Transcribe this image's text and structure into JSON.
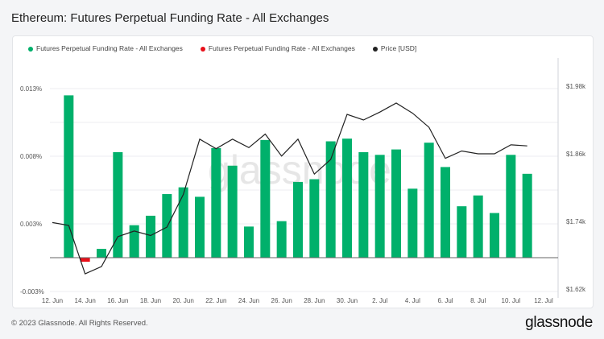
{
  "title": "Ethereum: Futures Perpetual Funding Rate - All Exchanges",
  "footer": "© 2023 Glassnode. All Rights Reserved.",
  "logo": "glassnode",
  "watermark": "glassnode",
  "chart_data": {
    "type": "bar",
    "legend": [
      {
        "label": "Futures Perpetual Funding Rate - All Exchanges",
        "color": "#00b06b"
      },
      {
        "label": "Futures Perpetual Funding Rate - All Exchanges",
        "color": "#e8101a"
      },
      {
        "label": "Price [USD]",
        "color": "#222222"
      }
    ],
    "legend_position": "top-left",
    "grid": true,
    "x_ticks": [
      "12. Jun",
      "14. Jun",
      "16. Jun",
      "18. Jun",
      "20. Jun",
      "22. Jun",
      "24. Jun",
      "26. Jun",
      "28. Jun",
      "30. Jun",
      "2. Jul",
      "4. Jul",
      "6. Jul",
      "8. Jul",
      "10. Jul",
      "12. Jul"
    ],
    "y_left": {
      "ticks": [
        -0.0025,
        0.0025,
        0.0075,
        0.0125
      ],
      "tick_labels": [
        "-0.003%",
        "0.003%",
        "0.008%",
        "0.013%"
      ],
      "range": [
        -0.0025,
        0.0145
      ],
      "unit": "%"
    },
    "y_right": {
      "ticks": [
        1620,
        1740,
        1860,
        1980
      ],
      "tick_labels": [
        "$1.62k",
        "$1.74k",
        "$1.86k",
        "$1.98k"
      ],
      "range": [
        1620,
        2010
      ]
    },
    "dates": [
      "12 Jun",
      "13 Jun",
      "14 Jun",
      "15 Jun",
      "16 Jun",
      "17 Jun",
      "18 Jun",
      "19 Jun",
      "20 Jun",
      "21 Jun",
      "22 Jun",
      "23 Jun",
      "24 Jun",
      "25 Jun",
      "26 Jun",
      "27 Jun",
      "28 Jun",
      "29 Jun",
      "30 Jun",
      "1 Jul",
      "2 Jul",
      "3 Jul",
      "4 Jul",
      "5 Jul",
      "6 Jul",
      "7 Jul",
      "8 Jul",
      "9 Jul",
      "10 Jul",
      "11 Jul"
    ],
    "funding_rate": [
      null,
      0.012,
      -0.0003,
      0.00065,
      0.0078,
      0.0024,
      0.0031,
      0.0047,
      0.0052,
      0.0045,
      0.0081,
      0.0068,
      0.0023,
      0.0087,
      0.0027,
      0.0056,
      0.0058,
      0.0086,
      0.0088,
      0.0078,
      0.0076,
      0.008,
      0.0051,
      0.0085,
      0.0067,
      0.0038,
      0.0046,
      0.0033,
      0.0076,
      0.0062
    ],
    "price": [
      1738,
      1733,
      1647,
      1660,
      1713,
      1723,
      1715,
      1730,
      1788,
      1886,
      1869,
      1886,
      1871,
      1895,
      1856,
      1886,
      1824,
      1850,
      1930,
      1920,
      1934,
      1950,
      1932,
      1907,
      1852,
      1865,
      1860,
      1860,
      1876,
      1874
    ]
  }
}
